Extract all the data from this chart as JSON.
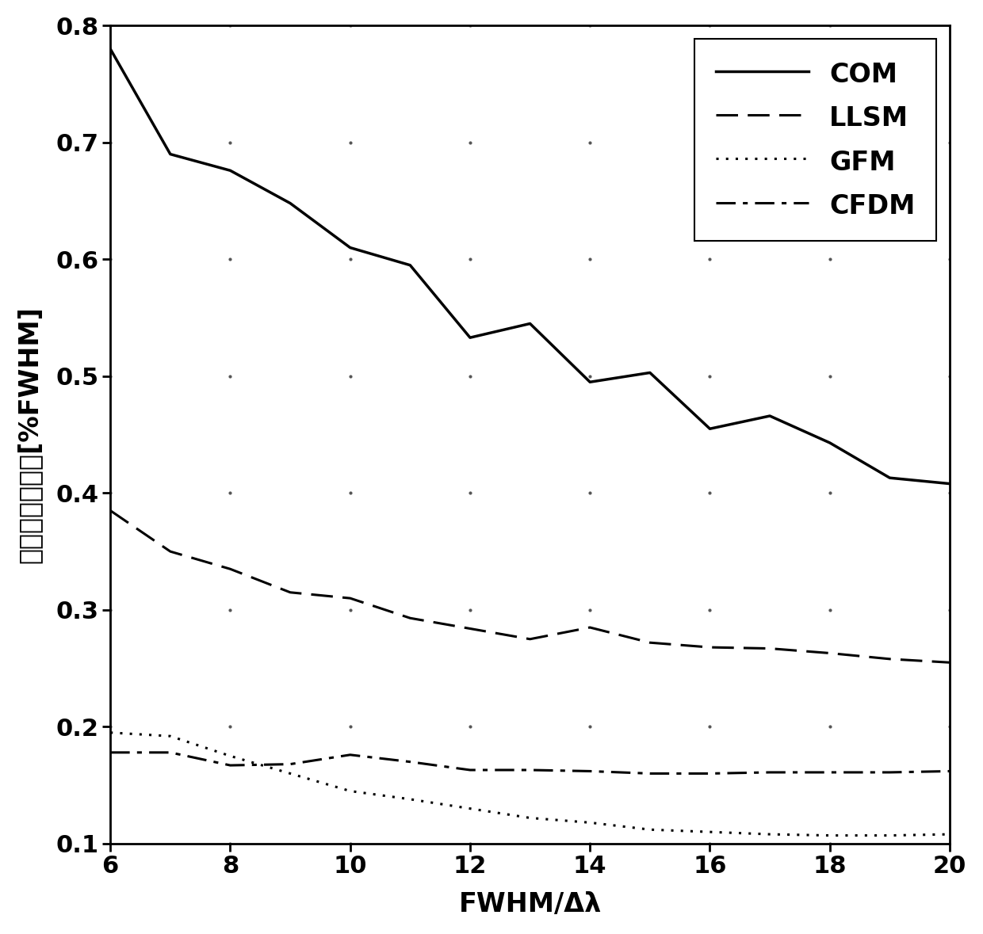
{
  "x": [
    6,
    7,
    8,
    9,
    10,
    11,
    12,
    13,
    14,
    15,
    16,
    17,
    18,
    19,
    20
  ],
  "COM": [
    0.78,
    0.69,
    0.676,
    0.648,
    0.61,
    0.595,
    0.533,
    0.545,
    0.495,
    0.503,
    0.455,
    0.466,
    0.443,
    0.413,
    0.408
  ],
  "LLSM": [
    0.385,
    0.35,
    0.335,
    0.315,
    0.31,
    0.293,
    0.284,
    0.275,
    0.285,
    0.272,
    0.268,
    0.267,
    0.263,
    0.258,
    0.255
  ],
  "GFM": [
    0.195,
    0.192,
    0.175,
    0.16,
    0.145,
    0.138,
    0.13,
    0.122,
    0.118,
    0.112,
    0.11,
    0.108,
    0.107,
    0.107,
    0.108
  ],
  "CFDM": [
    0.178,
    0.178,
    0.167,
    0.168,
    0.176,
    0.17,
    0.163,
    0.163,
    0.162,
    0.16,
    0.16,
    0.161,
    0.161,
    0.161,
    0.162
  ],
  "xlabel": "FWHM/Δλ",
  "ylabel": "峰値提取标准差[%FWHM]",
  "xlim": [
    6,
    20
  ],
  "ylim_min": 0.1,
  "ylim_max": 0.8,
  "yticks": [
    0.1,
    0.2,
    0.3,
    0.4,
    0.5,
    0.6,
    0.7,
    0.8
  ],
  "xticks": [
    6,
    8,
    10,
    12,
    14,
    16,
    18,
    20
  ],
  "line_color": "#000000",
  "background_color": "#ffffff"
}
